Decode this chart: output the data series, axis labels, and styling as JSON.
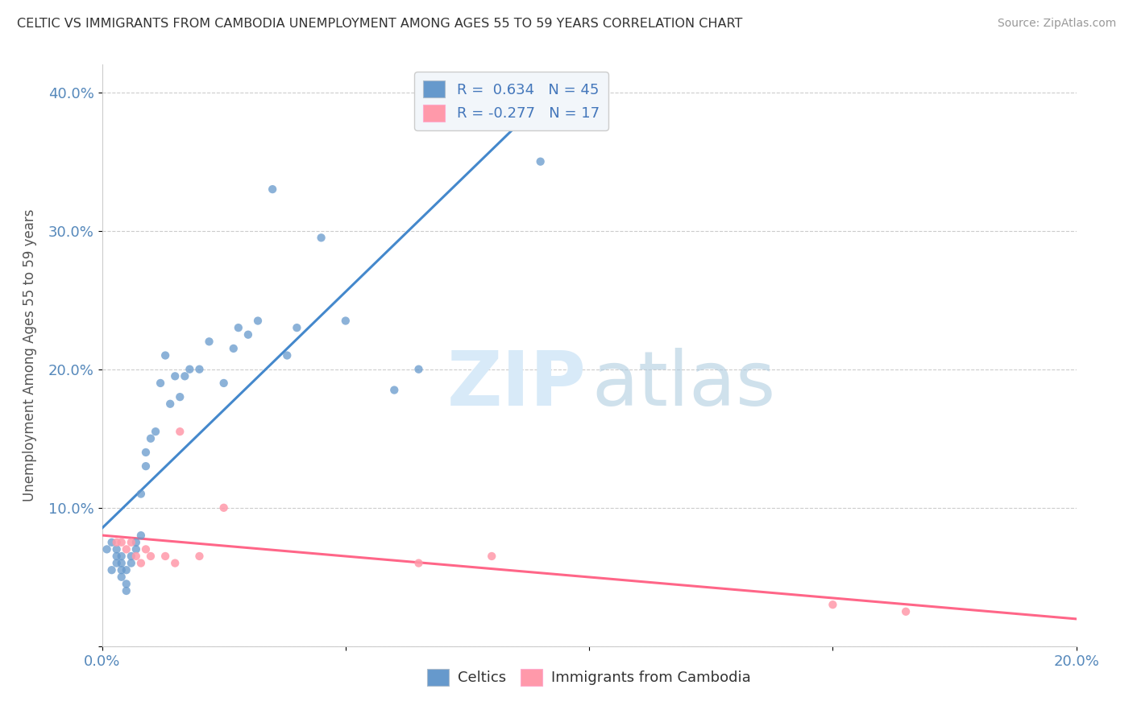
{
  "title": "CELTIC VS IMMIGRANTS FROM CAMBODIA UNEMPLOYMENT AMONG AGES 55 TO 59 YEARS CORRELATION CHART",
  "source": "Source: ZipAtlas.com",
  "ylabel": "Unemployment Among Ages 55 to 59 years",
  "xlim": [
    0.0,
    0.2
  ],
  "ylim": [
    0.0,
    0.42
  ],
  "xticks": [
    0.0,
    0.05,
    0.1,
    0.15,
    0.2
  ],
  "yticks": [
    0.0,
    0.1,
    0.2,
    0.3,
    0.4
  ],
  "celtics_R": 0.634,
  "celtics_N": 45,
  "cambodia_R": -0.277,
  "cambodia_N": 17,
  "celtics_color": "#6699CC",
  "cambodia_color": "#FF99AA",
  "celtics_line_color": "#4488CC",
  "cambodia_line_color": "#FF6688",
  "background_color": "#FFFFFF",
  "celtics_x": [
    0.001,
    0.002,
    0.002,
    0.003,
    0.003,
    0.003,
    0.004,
    0.004,
    0.004,
    0.004,
    0.005,
    0.005,
    0.005,
    0.006,
    0.006,
    0.007,
    0.007,
    0.008,
    0.008,
    0.009,
    0.009,
    0.01,
    0.011,
    0.012,
    0.013,
    0.014,
    0.015,
    0.016,
    0.017,
    0.018,
    0.02,
    0.022,
    0.025,
    0.027,
    0.028,
    0.03,
    0.032,
    0.035,
    0.038,
    0.04,
    0.045,
    0.05,
    0.06,
    0.065,
    0.09
  ],
  "celtics_y": [
    0.07,
    0.055,
    0.075,
    0.06,
    0.065,
    0.07,
    0.05,
    0.055,
    0.06,
    0.065,
    0.04,
    0.045,
    0.055,
    0.06,
    0.065,
    0.07,
    0.075,
    0.08,
    0.11,
    0.13,
    0.14,
    0.15,
    0.155,
    0.19,
    0.21,
    0.175,
    0.195,
    0.18,
    0.195,
    0.2,
    0.2,
    0.22,
    0.19,
    0.215,
    0.23,
    0.225,
    0.235,
    0.33,
    0.21,
    0.23,
    0.295,
    0.235,
    0.185,
    0.2,
    0.35
  ],
  "cambodia_x": [
    0.003,
    0.004,
    0.005,
    0.006,
    0.007,
    0.008,
    0.009,
    0.01,
    0.013,
    0.015,
    0.016,
    0.02,
    0.025,
    0.065,
    0.08,
    0.15,
    0.165
  ],
  "cambodia_y": [
    0.075,
    0.075,
    0.07,
    0.075,
    0.065,
    0.06,
    0.07,
    0.065,
    0.065,
    0.06,
    0.155,
    0.065,
    0.1,
    0.06,
    0.065,
    0.03,
    0.025
  ],
  "celtics_trend_x": [
    0.0,
    0.093
  ],
  "cambodia_trend_x": [
    0.0,
    0.2
  ]
}
